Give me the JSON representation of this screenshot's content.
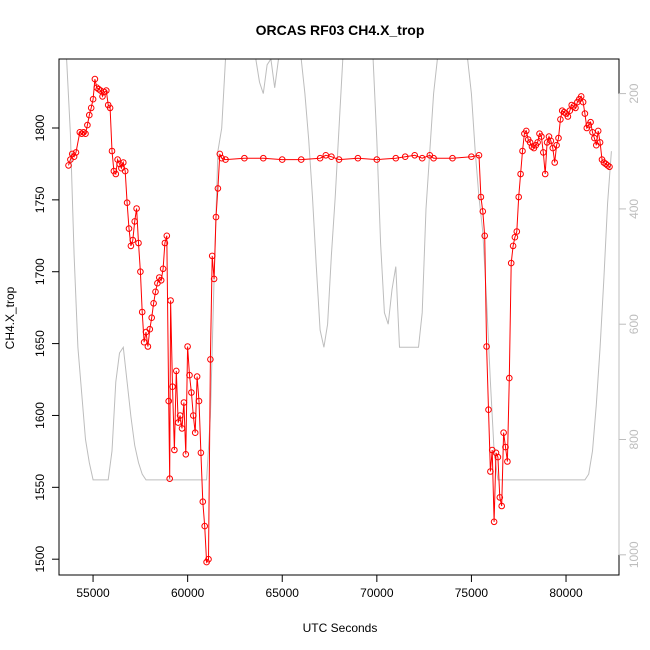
{
  "chart_data": {
    "type": "line",
    "title": "ORCAS RF03 CH4.X_trop",
    "xlabel": "UTC Seconds",
    "ylabel": "CH4.X_trop",
    "xlim": [
      53200,
      82800
    ],
    "ylim": [
      1489,
      1848
    ],
    "x_ticks": [
      "55000",
      "60000",
      "65000",
      "70000",
      "75000",
      "80000"
    ],
    "y_ticks": [
      "1500",
      "1550",
      "1600",
      "1650",
      "1700",
      "1750",
      "1800"
    ],
    "right_axis": {
      "lim": [
        1035,
        140
      ],
      "ticks": [
        "200",
        "400",
        "600",
        "800",
        "1000"
      ],
      "color": "#bdbdbd"
    },
    "series": [
      {
        "color": "#ff0000",
        "marker": "open-circle",
        "x": [
          53700,
          53800,
          53900,
          54000,
          54100,
          54300,
          54400,
          54500,
          54600,
          54700,
          54800,
          54900,
          55000,
          55100,
          55200,
          55300,
          55400,
          55500,
          55600,
          55700,
          55800,
          55900,
          56000,
          56100,
          56200,
          56300,
          56400,
          56500,
          56600,
          56700,
          56800,
          56900,
          57000,
          57100,
          57200,
          57300,
          57400,
          57500,
          57600,
          57700,
          57800,
          57900,
          58000,
          58100,
          58200,
          58300,
          58400,
          58500,
          58600,
          58700,
          58800,
          58900,
          59000,
          59050,
          59100,
          59200,
          59300,
          59400,
          59500,
          59600,
          59700,
          59800,
          59900,
          60000,
          60100,
          60200,
          60300,
          60400,
          60500,
          60600,
          60700,
          60800,
          60900,
          61000,
          61100,
          61200,
          61300,
          61400,
          61500,
          61600,
          61700,
          61800,
          62000,
          63000,
          64000,
          65000,
          66000,
          67000,
          67300,
          67600,
          68000,
          69000,
          70000,
          71000,
          71500,
          72000,
          72400,
          72800,
          73000,
          74000,
          75000,
          75400,
          75500,
          75600,
          75700,
          75800,
          75900,
          76000,
          76100,
          76200,
          76300,
          76400,
          76500,
          76600,
          76700,
          76800,
          76900,
          77000,
          77100,
          77200,
          77300,
          77400,
          77500,
          77600,
          77700,
          77800,
          77900,
          78000,
          78100,
          78200,
          78300,
          78400,
          78500,
          78600,
          78700,
          78800,
          78900,
          79000,
          79100,
          79200,
          79300,
          79400,
          79500,
          79600,
          79700,
          79800,
          79900,
          80000,
          80100,
          80200,
          80300,
          80400,
          80500,
          80600,
          80700,
          80800,
          80900,
          81000,
          81100,
          81200,
          81300,
          81400,
          81500,
          81600,
          81700,
          81800,
          81900,
          82000,
          82100,
          82200,
          82300
        ],
        "y": [
          1774,
          1778,
          1782,
          1780,
          1783,
          1797,
          1796,
          1797,
          1796,
          1802,
          1809,
          1814,
          1820,
          1834,
          1828,
          1827,
          1826,
          1822,
          1825,
          1826,
          1816,
          1814,
          1784,
          1770,
          1768,
          1778,
          1775,
          1772,
          1776,
          1770,
          1748,
          1730,
          1718,
          1722,
          1735,
          1744,
          1720,
          1700,
          1672,
          1651,
          1658,
          1648,
          1660,
          1668,
          1678,
          1686,
          1692,
          1696,
          1694,
          1702,
          1720,
          1725,
          1610,
          1556,
          1680,
          1620,
          1576,
          1631,
          1595,
          1600,
          1591,
          1609,
          1573,
          1648,
          1628,
          1616,
          1600,
          1588,
          1627,
          1610,
          1574,
          1540,
          1523,
          1498,
          1500,
          1639,
          1711,
          1695,
          1738,
          1758,
          1782,
          1779,
          1778,
          1779,
          1779,
          1778,
          1778,
          1779,
          1781,
          1780,
          1778,
          1779,
          1778,
          1779,
          1780,
          1781,
          1779,
          1781,
          1779,
          1779,
          1780,
          1781,
          1752,
          1742,
          1725,
          1648,
          1604,
          1561,
          1576,
          1526,
          1574,
          1571,
          1543,
          1537,
          1588,
          1578,
          1568,
          1626,
          1706,
          1718,
          1724,
          1728,
          1752,
          1768,
          1784,
          1796,
          1798,
          1792,
          1790,
          1787,
          1786,
          1788,
          1790,
          1796,
          1794,
          1783,
          1768,
          1790,
          1794,
          1791,
          1786,
          1776,
          1788,
          1793,
          1806,
          1812,
          1811,
          1810,
          1808,
          1812,
          1816,
          1815,
          1814,
          1818,
          1820,
          1822,
          1818,
          1810,
          1800,
          1802,
          1804,
          1797,
          1793,
          1788,
          1798,
          1790,
          1778,
          1776,
          1775,
          1774,
          1773
        ]
      },
      {
        "color": "#bdbdbd",
        "marker": "none",
        "axis": "right",
        "x": [
          53600,
          53800,
          54000,
          54200,
          54400,
          54600,
          54800,
          55000,
          55200,
          55400,
          55600,
          55800,
          56000,
          56200,
          56400,
          56600,
          56800,
          57000,
          57200,
          57400,
          57600,
          57800,
          58000,
          58500,
          59000,
          59500,
          60000,
          60500,
          61000,
          61200,
          61400,
          61600,
          61700,
          61900,
          62000,
          62200,
          62400,
          62600,
          62800,
          63000,
          63200,
          63400,
          63600,
          63800,
          64000,
          64200,
          64400,
          64600,
          64800,
          65000,
          65200,
          65400,
          65600,
          65800,
          66000,
          66200,
          66400,
          66600,
          66800,
          67000,
          67200,
          67400,
          67600,
          67800,
          68000,
          68200,
          68400,
          68600,
          68800,
          69000,
          69200,
          69400,
          69600,
          69800,
          70000,
          70200,
          70400,
          70600,
          70800,
          71000,
          71200,
          71500,
          71800,
          72000,
          72200,
          72400,
          72600,
          72800,
          73000,
          73200,
          73400,
          73600,
          73800,
          74000,
          74200,
          74400,
          74600,
          74800,
          75000,
          75200,
          75400,
          75600,
          75800,
          76000,
          76200,
          76400,
          76600,
          76800,
          77000,
          77200,
          77400,
          77600,
          77800,
          78000,
          78500,
          79000,
          79500,
          80000,
          80500,
          81000,
          81200,
          81400,
          81600,
          81800,
          82000,
          82200,
          82400
        ],
        "y": [
          140,
          270,
          480,
          640,
          720,
          800,
          840,
          870,
          870,
          870,
          870,
          870,
          820,
          700,
          650,
          640,
          700,
          760,
          810,
          840,
          860,
          870,
          870,
          870,
          870,
          870,
          870,
          870,
          870,
          760,
          520,
          300,
          230,
          140,
          140,
          140,
          140,
          140,
          140,
          140,
          140,
          140,
          140,
          140,
          140,
          140,
          140,
          140,
          140,
          140,
          140,
          140,
          140,
          140,
          140,
          140,
          140,
          140,
          140,
          140,
          140,
          140,
          140,
          140,
          140,
          140,
          140,
          140,
          140,
          140,
          140,
          140,
          140,
          140,
          140,
          140,
          140,
          140,
          140,
          140,
          140,
          140,
          140,
          140,
          140,
          140,
          140,
          140,
          140,
          140,
          140,
          140,
          140,
          140,
          140,
          140,
          140,
          140,
          140,
          140,
          140,
          140,
          140,
          140,
          140,
          140,
          140,
          140,
          140,
          140,
          140,
          140,
          140,
          140,
          140,
          140,
          140,
          140,
          140,
          140,
          140,
          140,
          140,
          140,
          140,
          140,
          140
        ],
        "y_detail": [
          {
            "x": [
              61800,
              62000,
              62200,
              62400,
              62600,
              62800,
              63000,
              63200,
              63400,
              63600,
              63800,
              64000,
              64200,
              64400,
              64600,
              64800,
              65000,
              65200,
              65400,
              65600,
              65800,
              66000,
              66200,
              66400,
              66600,
              66800,
              67000,
              67200,
              67400,
              67600,
              67800,
              68000,
              68200,
              68400,
              68600,
              68800,
              69000,
              69200,
              69400,
              69600,
              69800,
              70000,
              70200,
              70400,
              70600,
              70800,
              71000,
              71200,
              71400,
              71600,
              71800,
              72000,
              72200,
              72400,
              72600,
              72800,
              73000,
              73200,
              73400,
              73600,
              73800,
              74000,
              74200,
              74400,
              74600,
              74800,
              75000,
              75200,
              75400,
              75600,
              75800,
              76000,
              76200,
              76400,
              76600,
              76800,
              77000,
              77200,
              77400,
              77600,
              77800,
              78000,
              78400,
              78800,
              79200,
              79600,
              80000,
              80400,
              80800,
              81000,
              81200,
              81400,
              81600,
              81800,
              82000,
              82200,
              82400
            ],
            "y": [
              260,
              140,
              140,
              140,
              140,
              140,
              140,
              140,
              140,
              140,
              180,
              200,
              150,
              140,
              190,
              140,
              140,
              140,
              140,
              140,
              140,
              140,
              200,
              280,
              380,
              500,
              610,
              640,
              600,
              480,
              380,
              260,
              140,
              140,
              140,
              140,
              140,
              140,
              140,
              140,
              140,
              280,
              460,
              580,
              600,
              540,
              500,
              640,
              640,
              640,
              640,
              640,
              640,
              580,
              400,
              300,
              200,
              140,
              140,
              140,
              140,
              140,
              140,
              140,
              140,
              140,
              200,
              300,
              380,
              440,
              560,
              700,
              820,
              870,
              870,
              870,
              870,
              870,
              870,
              870,
              870,
              870,
              870,
              870,
              870,
              870,
              870,
              870,
              870,
              870,
              860,
              820,
              740,
              640,
              520,
              390,
              300
            ]
          }
        ]
      }
    ]
  }
}
